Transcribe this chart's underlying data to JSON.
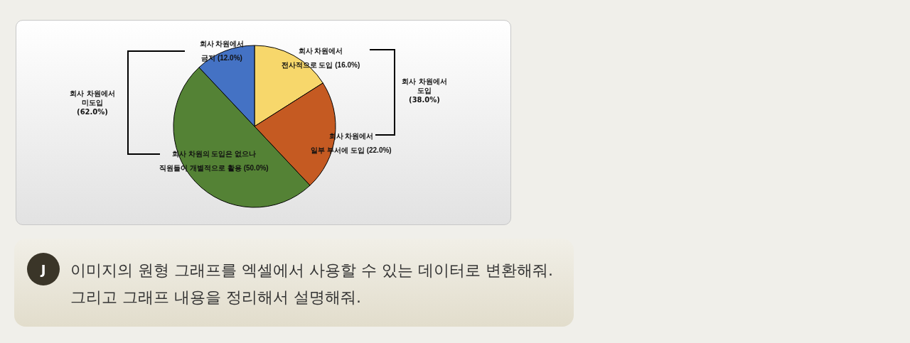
{
  "chart_data": {
    "type": "pie",
    "categories": [
      "회사 차원에서\n전사적으로 도입",
      "회사 차원에서\n일부 부서에 도입",
      "회사 차원의 도입은 없으나\n직원들이 개별적으로 활용",
      "회사 차원에서\n금지"
    ],
    "values": [
      16,
      22,
      50,
      12
    ],
    "value_labels": [
      "(16.0%)",
      "(22.0%)",
      "(50.0%)",
      "(12.0%)"
    ],
    "colors": [
      "#f7d76b",
      "#c55a22",
      "#548235",
      "#4472c4"
    ],
    "annotations": [
      "회사 차원에서\n미도입\n(62.0%)",
      "회사 차원에서\n도입\n(38.0%)",
      "J",
      "이미지의 원형 그래프를 엑셀에서 사용할 수 있는 데이터로 변환해줘.\n그리고 그래프 내용을 정리해서 설명해줘."
    ]
  }
}
